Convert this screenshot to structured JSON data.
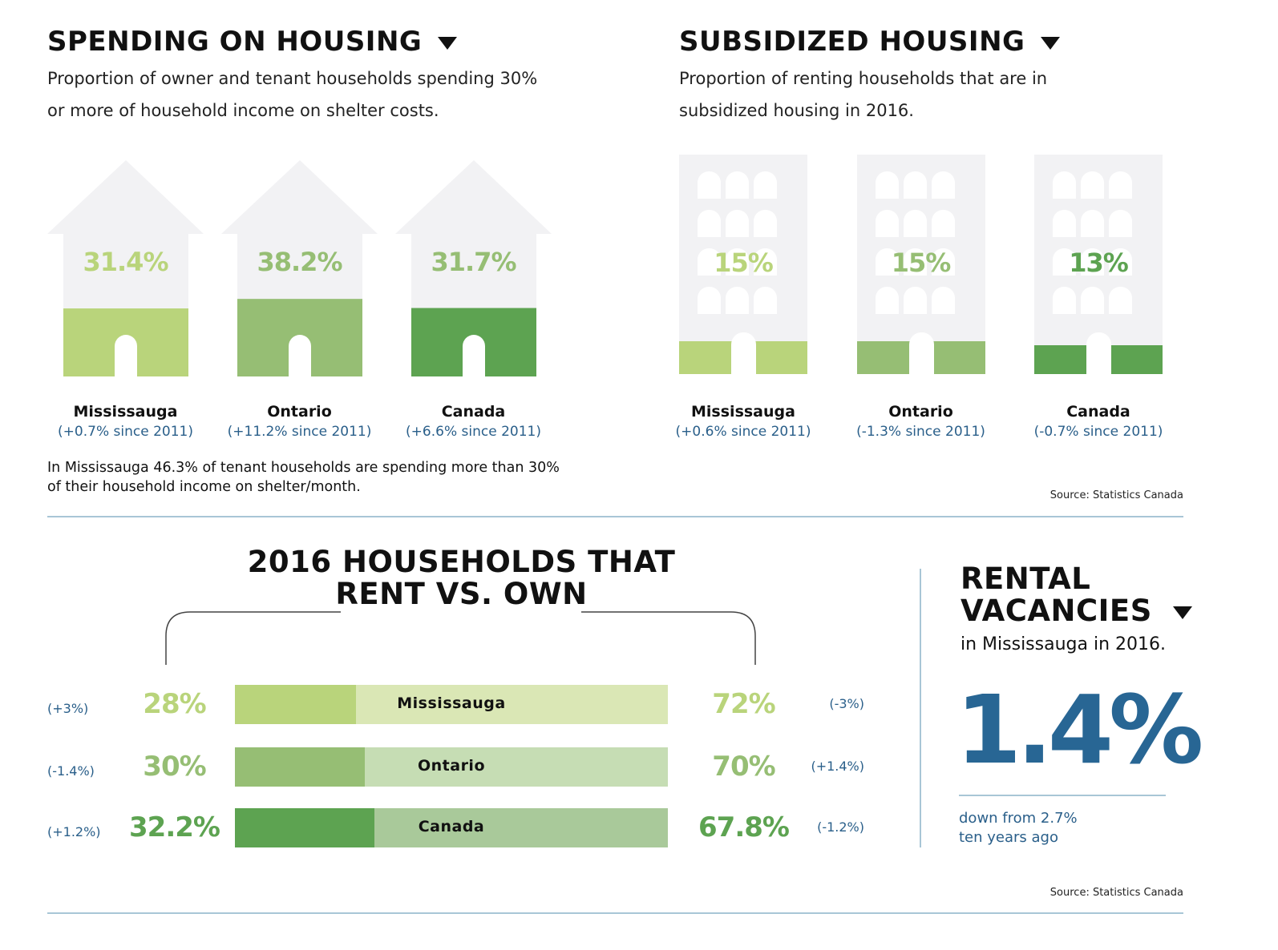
{
  "spending": {
    "title": "SPENDING ON HOUSING",
    "subtitle_line1": "Proportion of owner and tenant households spending 30%",
    "subtitle_line2": "or more of household income on shelter costs.",
    "items": [
      {
        "name": "Mississauga",
        "value": "31.4%",
        "change": "(+0.7% since 2011)",
        "color": "#b9d47b"
      },
      {
        "name": "Ontario",
        "value": "38.2%",
        "change": "(+11.2% since 2011)",
        "color": "#96be74"
      },
      {
        "name": "Canada",
        "value": "31.7%",
        "change": "(+6.6% since 2011)",
        "color": "#5da351"
      }
    ],
    "note_line1": "In Mississauga 46.3% of tenant households are spending more than 30%",
    "note_line2": "of their household income on shelter/month."
  },
  "subsidized": {
    "title": "SUBSIDIZED HOUSING",
    "subtitle_line1": "Proportion of renting households that are in",
    "subtitle_line2": "subsidized housing in 2016.",
    "items": [
      {
        "name": "Mississauga",
        "value": "15%",
        "change": "(+0.6% since 2011)",
        "color": "#b9d47b"
      },
      {
        "name": "Ontario",
        "value": "15%",
        "change": "(-1.3% since 2011)",
        "color": "#96be74"
      },
      {
        "name": "Canada",
        "value": "13%",
        "change": "(-0.7% since 2011)",
        "color": "#5da351"
      }
    ],
    "source": "Source: Statistics Canada"
  },
  "rent_own": {
    "title_line1": "2016 HOUSEHOLDS THAT",
    "title_line2": "RENT VS. OWN",
    "rows": [
      {
        "name": "Mississauga",
        "rent": "28%",
        "rent_change": "(+3%)",
        "own": "72%",
        "own_change": "(-3%)",
        "rent_color": "#b9d47b",
        "own_color": "#dae7b5"
      },
      {
        "name": "Ontario",
        "rent": "30%",
        "rent_change": "(-1.4%)",
        "own": "70%",
        "own_change": "(+1.4%)",
        "rent_color": "#96be74",
        "own_color": "#c6ddb4"
      },
      {
        "name": "Canada",
        "rent": "32.2%",
        "rent_change": "(+1.2%)",
        "own": "67.8%",
        "own_change": "(-1.2%)",
        "rent_color": "#5da351",
        "own_color": "#a9c99a"
      }
    ],
    "source": "Source: Statistics Canada"
  },
  "vacancies": {
    "title_line1": "RENTAL",
    "title_line2": "VACANCIES",
    "subtitle": "in Mississauga in 2016.",
    "value": "1.4%",
    "note_line1": "down from 2.7%",
    "note_line2": "ten years ago",
    "color": "#286694"
  },
  "chart_data": [
    {
      "type": "bar",
      "title": "SPENDING ON HOUSING",
      "categories": [
        "Mississauga",
        "Ontario",
        "Canada"
      ],
      "values": [
        31.4,
        38.2,
        31.7
      ],
      "change_since_2011": [
        0.7,
        11.2,
        6.6
      ]
    },
    {
      "type": "bar",
      "title": "SUBSIDIZED HOUSING",
      "categories": [
        "Mississauga",
        "Ontario",
        "Canada"
      ],
      "values": [
        15,
        15,
        13
      ],
      "change_since_2011": [
        0.6,
        -1.3,
        -0.7
      ]
    },
    {
      "type": "bar",
      "title": "2016 HOUSEHOLDS THAT RENT VS. OWN",
      "categories": [
        "Mississauga",
        "Ontario",
        "Canada"
      ],
      "series": [
        {
          "name": "rent",
          "values": [
            28,
            30,
            32.2
          ],
          "change": [
            3,
            -1.4,
            1.2
          ]
        },
        {
          "name": "own",
          "values": [
            72,
            70,
            67.8
          ],
          "change": [
            -3,
            1.4,
            -1.2
          ]
        }
      ]
    }
  ]
}
